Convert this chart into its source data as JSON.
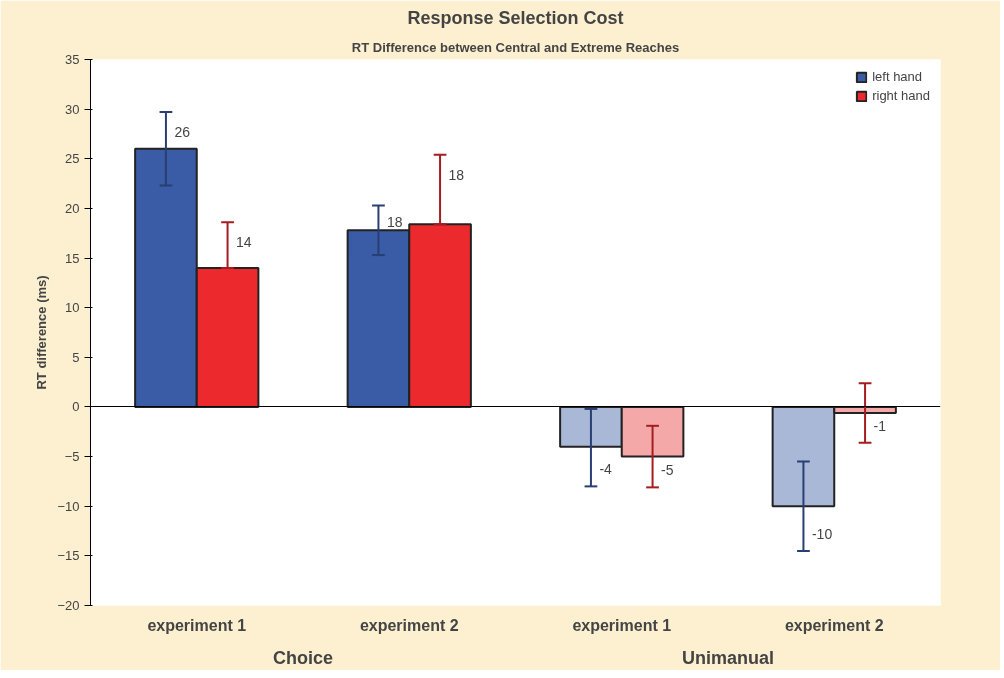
{
  "chart_data": {
    "type": "bar",
    "title": "Response Selection Cost",
    "subtitle": "RT Difference between Central and Extreme Reaches",
    "ylabel": "RT difference (ms)",
    "categories": [
      "experiment 1",
      "experiment 2",
      "experiment 1",
      "experiment 2"
    ],
    "annotations": [
      "Choice",
      "Unimanual"
    ],
    "series": [
      {
        "name": "left hand",
        "color": "#3a5ba5",
        "colors": [
          "#3a5ba5",
          "#3a5ba5",
          "#aab8d8",
          "#aab8d8"
        ],
        "values": [
          26,
          17.8,
          -4,
          -10
        ],
        "value_labels": [
          "26",
          "18",
          "-4",
          "-10"
        ],
        "errors": [
          [
            22.3,
            29.7
          ],
          [
            15.3,
            20.3
          ],
          [
            -8,
            -0.2
          ],
          [
            -14.5,
            -5.5
          ]
        ]
      },
      {
        "name": "right hand",
        "color": "#ec2a2e",
        "colors": [
          "#ec2a2e",
          "#ec2a2e",
          "#f4a8a8",
          "#f4a8a8"
        ],
        "values": [
          14,
          18.4,
          -5,
          -0.6
        ],
        "value_labels": [
          "14",
          "18",
          "-5",
          "-1"
        ],
        "errors": [
          [
            14,
            18.6
          ],
          [
            18.4,
            25.4
          ],
          [
            -8.1,
            -1.9
          ],
          [
            -3.6,
            2.4
          ]
        ]
      }
    ],
    "ylim": [
      -20,
      35
    ],
    "yticks": [
      -20,
      -15,
      -10,
      -5,
      0,
      5,
      10,
      15,
      20,
      25,
      30,
      35
    ],
    "legend": "top right"
  }
}
